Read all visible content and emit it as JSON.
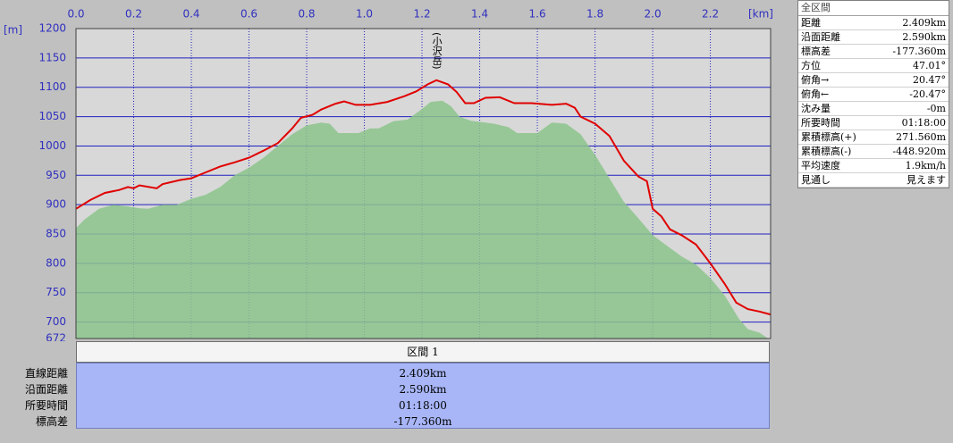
{
  "chart_data": {
    "type": "line",
    "y_unit": "[m]",
    "x_unit": "[km]",
    "annotation": "(小沢岳)",
    "xlim": [
      0,
      2.409
    ],
    "xticks": [
      {
        "value": 0,
        "label": "0.0"
      },
      0.2,
      0.4,
      0.6,
      0.8,
      {
        "value": 1,
        "label": "1.0"
      },
      1.2,
      1.4,
      1.6,
      1.8,
      {
        "value": 2,
        "label": "2.0"
      },
      2.2
    ],
    "ylim": [
      672,
      1200
    ],
    "yticks": [
      672,
      700,
      750,
      800,
      850,
      900,
      950,
      1000,
      1050,
      1100,
      1150,
      1200
    ],
    "grid": true,
    "series": [
      {
        "color": "#8cc48c",
        "fill": true,
        "x": [
          0,
          0.03,
          0.08,
          0.13,
          0.18,
          0.22,
          0.25,
          0.3,
          0.35,
          0.4,
          0.45,
          0.5,
          0.55,
          0.6,
          0.65,
          0.7,
          0.75,
          0.8,
          0.85,
          0.88,
          0.91,
          0.98,
          1.02,
          1.05,
          1.1,
          1.15,
          1.2,
          1.23,
          1.27,
          1.3,
          1.33,
          1.37,
          1.45,
          1.5,
          1.53,
          1.6,
          1.65,
          1.7,
          1.75,
          1.8,
          1.85,
          1.9,
          1.95,
          2.0,
          2.05,
          2.1,
          2.15,
          2.2,
          2.25,
          2.3,
          2.33,
          2.37,
          2.4
        ],
        "values": [
          860,
          875,
          893,
          900,
          897,
          894,
          893,
          900,
          900,
          910,
          917,
          930,
          950,
          963,
          980,
          1000,
          1020,
          1035,
          1040,
          1038,
          1022,
          1022,
          1030,
          1030,
          1042,
          1045,
          1063,
          1075,
          1077,
          1068,
          1050,
          1043,
          1038,
          1032,
          1022,
          1022,
          1040,
          1038,
          1020,
          985,
          945,
          905,
          877,
          848,
          830,
          812,
          798,
          775,
          745,
          705,
          688,
          682,
          672
        ]
      },
      {
        "color": "#e00000",
        "fill": false,
        "x": [
          0,
          0.05,
          0.1,
          0.15,
          0.18,
          0.2,
          0.22,
          0.28,
          0.3,
          0.36,
          0.4,
          0.45,
          0.5,
          0.55,
          0.6,
          0.65,
          0.7,
          0.75,
          0.78,
          0.82,
          0.85,
          0.9,
          0.93,
          0.97,
          1.02,
          1.08,
          1.14,
          1.18,
          1.22,
          1.25,
          1.29,
          1.32,
          1.35,
          1.38,
          1.42,
          1.47,
          1.52,
          1.58,
          1.65,
          1.7,
          1.73,
          1.75,
          1.8,
          1.85,
          1.9,
          1.95,
          1.98,
          2.0,
          2.03,
          2.06,
          2.1,
          2.15,
          2.2,
          2.25,
          2.29,
          2.33,
          2.37,
          2.409
        ],
        "values": [
          893,
          908,
          920,
          925,
          930,
          928,
          933,
          928,
          935,
          942,
          945,
          955,
          965,
          972,
          980,
          992,
          1005,
          1030,
          1048,
          1053,
          1062,
          1072,
          1076,
          1070,
          1070,
          1075,
          1085,
          1093,
          1105,
          1112,
          1105,
          1092,
          1073,
          1073,
          1082,
          1083,
          1073,
          1073,
          1070,
          1072,
          1065,
          1050,
          1038,
          1017,
          975,
          948,
          940,
          893,
          880,
          858,
          848,
          832,
          800,
          765,
          733,
          722,
          718,
          713
        ]
      }
    ]
  },
  "panel": {
    "title": "全区間",
    "rows": [
      [
        "距離",
        "2.409km"
      ],
      [
        "沿面距離",
        "2.590km"
      ],
      [
        "標高差",
        "-177.360m"
      ],
      [
        "方位",
        "47.01°"
      ],
      [
        "俯角→",
        "20.47°"
      ],
      [
        "俯角←",
        "-20.47°"
      ],
      [
        "沈み量",
        "-0m"
      ],
      [
        "所要時間",
        "01:18:00"
      ],
      [
        "累積標高(+)",
        "271.560m"
      ],
      [
        "累積標高(-)",
        "-448.920m"
      ],
      [
        "平均速度",
        "1.9km/h"
      ],
      [
        "見通し",
        "見えます"
      ]
    ]
  },
  "segment": {
    "title": "区間 1",
    "rows": [
      [
        "直線距離",
        "2.409km"
      ],
      [
        "沿面距離",
        "2.590km"
      ],
      [
        "所要時間",
        "01:18:00"
      ],
      [
        "標高差",
        "-177.360m"
      ]
    ]
  }
}
